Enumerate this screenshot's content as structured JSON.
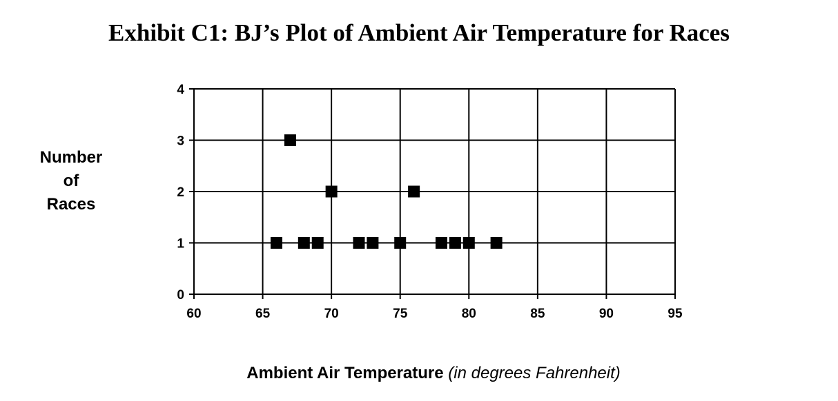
{
  "chart_data": {
    "type": "scatter",
    "title": "Exhibit C1: BJ’s Plot of Ambient Air Temperature for Races",
    "ylabel_lines": [
      "Number",
      "of",
      "Races"
    ],
    "xlabel_main": "Ambient Air Temperature",
    "xlabel_sub": "(in degrees Fahrenheit)",
    "xlim": [
      60,
      95
    ],
    "ylim": [
      0,
      4
    ],
    "xticks": [
      60,
      65,
      70,
      75,
      80,
      85,
      90,
      95
    ],
    "yticks": [
      0,
      1,
      2,
      3,
      4
    ],
    "grid": true,
    "marker": "square",
    "marker_color": "#000000",
    "points": [
      {
        "x": 66,
        "y": 1
      },
      {
        "x": 67,
        "y": 3
      },
      {
        "x": 68,
        "y": 1
      },
      {
        "x": 69,
        "y": 1
      },
      {
        "x": 70,
        "y": 2
      },
      {
        "x": 72,
        "y": 1
      },
      {
        "x": 73,
        "y": 1
      },
      {
        "x": 75,
        "y": 1
      },
      {
        "x": 76,
        "y": 2
      },
      {
        "x": 78,
        "y": 1
      },
      {
        "x": 79,
        "y": 1
      },
      {
        "x": 80,
        "y": 1
      },
      {
        "x": 82,
        "y": 1
      }
    ]
  }
}
